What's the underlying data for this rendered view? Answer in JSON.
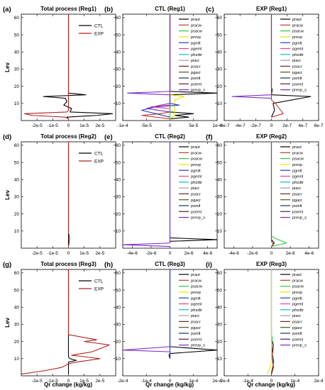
{
  "figure": {
    "ylabel": "Lev",
    "xlabel": "Qr change (kg/kg)"
  },
  "process_legend": [
    {
      "name": "praut",
      "color": "#000000"
    },
    {
      "name": "pracw",
      "color": "#c0392b"
    },
    {
      "name": "psacw",
      "color": "#2ecc40"
    },
    {
      "name": "prevp",
      "color": "#e6e600"
    },
    {
      "name": "pgmlt",
      "color": "#1f3fbf"
    },
    {
      "name": "pgeml",
      "color": "#e83e8c"
    },
    {
      "name": "pfrzdtr",
      "color": "#00bcd4"
    },
    {
      "name": "piacr",
      "color": "#9e9e9e"
    },
    {
      "name": "psacr",
      "color": "#6d2a1e"
    },
    {
      "name": "pgacr",
      "color": "#4a5a1a"
    },
    {
      "name": "psmlt",
      "color": "#0a3a5a"
    },
    {
      "name": "pseml",
      "color": "#5a1a3a"
    },
    {
      "name": "prevp_s",
      "color": "#7a2ac9"
    }
  ],
  "total_legend": [
    {
      "name": "CTL",
      "color": "#000000"
    },
    {
      "name": "EXP",
      "color": "#b22222"
    }
  ],
  "chart_data": [
    {
      "id": "a",
      "label": "(a)",
      "title": "Total process (Reg1)",
      "type": "line",
      "xlim": [
        -3e-05,
        3e-05
      ],
      "ylim": [
        0,
        62
      ],
      "xticks": [
        "-2e-5",
        "-1e-5",
        "0",
        "1e-5",
        "2e-5"
      ],
      "xtick_values": [
        -2e-05,
        -1e-05,
        0,
        1e-05,
        2e-05
      ],
      "yticks": [
        10,
        20,
        30,
        40,
        50,
        60
      ],
      "legend": "total",
      "series": [
        {
          "name": "CTL",
          "color": "#000000",
          "points": [
            [
              0,
              1
            ],
            [
              -1e-06,
              2
            ],
            [
              1.8e-05,
              3
            ],
            [
              2.8e-05,
              4
            ],
            [
              1e-06,
              5
            ],
            [
              2e-06,
              7
            ],
            [
              -3e-06,
              9
            ],
            [
              -1e-06,
              11
            ],
            [
              -2e-06,
              13
            ],
            [
              -1.6e-05,
              14
            ],
            [
              1.1e-05,
              15
            ],
            [
              0,
              16
            ],
            [
              0,
              62
            ]
          ]
        },
        {
          "name": "EXP",
          "color": "#b22222",
          "points": [
            [
              0,
              1
            ],
            [
              -2e-06,
              2
            ],
            [
              -2.3e-05,
              3
            ],
            [
              -2.8e-05,
              4
            ],
            [
              -1e-06,
              5
            ],
            [
              0,
              6
            ],
            [
              0,
              62
            ]
          ]
        }
      ]
    },
    {
      "id": "b",
      "label": "(b)",
      "title": "CTL (Reg1)",
      "type": "line",
      "xlim": [
        -0.0001,
        0.0001
      ],
      "ylim": [
        0,
        62
      ],
      "xticks": [
        "-1e-4",
        "-5e-5",
        "0",
        "5e-5",
        "1e-4"
      ],
      "xtick_values": [
        -0.0001,
        -5e-05,
        0,
        5e-05,
        0.0001
      ],
      "yticks": [
        10,
        20,
        30,
        40,
        50,
        60
      ],
      "legend": "process",
      "series": [
        {
          "name": "praut",
          "color": "#000000",
          "points": [
            [
              0,
              1
            ],
            [
              4e-05,
              2
            ],
            [
              1e-05,
              3
            ],
            [
              5e-05,
              4
            ],
            [
              0,
              5
            ],
            [
              0,
              15
            ],
            [
              0.0001,
              16
            ],
            [
              0,
              17
            ],
            [
              0,
              62
            ]
          ]
        },
        {
          "name": "pracw",
          "color": "#c0392b",
          "points": [
            [
              0,
              1
            ],
            [
              -3e-05,
              2
            ],
            [
              -6e-05,
              3
            ],
            [
              -2e-05,
              4
            ],
            [
              0,
              5
            ],
            [
              0,
              62
            ]
          ]
        },
        {
          "name": "psacw",
          "color": "#2ecc40",
          "points": [
            [
              0,
              1
            ],
            [
              0,
              62
            ]
          ]
        },
        {
          "name": "prevp",
          "color": "#e6e600",
          "points": [
            [
              0,
              1
            ],
            [
              1e-05,
              3
            ],
            [
              1e-05,
              12
            ],
            [
              3e-05,
              14
            ],
            [
              0,
              15
            ],
            [
              0,
              62
            ]
          ]
        },
        {
          "name": "pgmlt",
          "color": "#1f3fbf",
          "points": [
            [
              0,
              2
            ],
            [
              -3e-05,
              4
            ],
            [
              -6e-05,
              6
            ],
            [
              -3e-05,
              8
            ],
            [
              2e-05,
              9
            ],
            [
              0,
              10
            ],
            [
              0,
              62
            ]
          ]
        },
        {
          "name": "pgeml",
          "color": "#e83e8c",
          "points": [
            [
              0,
              7
            ],
            [
              -4e-05,
              8
            ],
            [
              0,
              9
            ],
            [
              0,
              62
            ]
          ]
        },
        {
          "name": "prevp_s",
          "color": "#7a2ac9",
          "points": [
            [
              0,
              5
            ],
            [
              -5e-05,
              7
            ],
            [
              -2e-05,
              9
            ],
            [
              0,
              10
            ],
            [
              0,
              15
            ],
            [
              -9e-05,
              16
            ],
            [
              0,
              17
            ],
            [
              0,
              62
            ]
          ]
        }
      ]
    },
    {
      "id": "c",
      "label": "(c)",
      "title": "EXP (Reg1)",
      "type": "line",
      "xlim": [
        -6e-07,
        6e-07
      ],
      "ylim": [
        0,
        62
      ],
      "xticks": [
        "-6e-7",
        "-4e-7",
        "-2e-7",
        "0",
        "2e-7",
        "4e-7",
        "6e-7"
      ],
      "xtick_values": [
        -6e-07,
        -4e-07,
        -2e-07,
        0,
        2e-07,
        4e-07,
        6e-07
      ],
      "yticks": [
        10,
        20,
        30,
        40,
        50,
        60
      ],
      "legend": "process",
      "series": [
        {
          "name": "praut",
          "color": "#000000",
          "points": [
            [
              0,
              2
            ],
            [
              4e-08,
              6
            ],
            [
              2e-08,
              10
            ],
            [
              5e-07,
              14
            ],
            [
              0,
              15
            ],
            [
              1e-08,
              18
            ],
            [
              0,
              19
            ],
            [
              0,
              62
            ]
          ]
        },
        {
          "name": "pracw",
          "color": "#c0392b",
          "points": [
            [
              0,
              2
            ],
            [
              1.5e-07,
              4
            ],
            [
              1e-07,
              7
            ],
            [
              5e-08,
              10
            ],
            [
              0,
              12
            ],
            [
              0,
              62
            ]
          ]
        },
        {
          "name": "prevp_s",
          "color": "#7a2ac9",
          "points": [
            [
              0,
              13
            ],
            [
              -5e-07,
              14
            ],
            [
              0,
              15
            ],
            [
              0,
              62
            ]
          ]
        }
      ]
    },
    {
      "id": "d",
      "label": "(d)",
      "title": "Total process (Reg2)",
      "type": "line",
      "xlim": [
        -3e-05,
        3e-05
      ],
      "ylim": [
        0,
        62
      ],
      "xticks": [
        "-2e-5",
        "-1e-5",
        "0",
        "1e-5",
        "2e-5"
      ],
      "xtick_values": [
        -2e-05,
        -1e-05,
        0,
        1e-05,
        2e-05
      ],
      "yticks": [
        10,
        20,
        30,
        40,
        50,
        60
      ],
      "legend": "total",
      "series": [
        {
          "name": "CTL",
          "color": "#000000",
          "points": [
            [
              0,
              1
            ],
            [
              0,
              62
            ]
          ]
        },
        {
          "name": "EXP",
          "color": "#b22222",
          "points": [
            [
              0,
              1
            ],
            [
              4e-07,
              3
            ],
            [
              8e-07,
              6
            ],
            [
              3e-07,
              8
            ],
            [
              0,
              9
            ],
            [
              0,
              62
            ]
          ]
        }
      ]
    },
    {
      "id": "e",
      "label": "(e)",
      "title": "CTL (Reg2)",
      "type": "line",
      "xlim": [
        -5e-06,
        5e-06
      ],
      "ylim": [
        0,
        62
      ],
      "xticks": [
        "-4e-6",
        "-2e-6",
        "0",
        "2e-6",
        "4e-6"
      ],
      "xtick_values": [
        -4e-06,
        -2e-06,
        0,
        2e-06,
        4e-06
      ],
      "yticks": [
        10,
        20,
        30,
        40,
        50,
        60
      ],
      "legend": "process",
      "series": [
        {
          "name": "praut",
          "color": "#000000",
          "points": [
            [
              0,
              4
            ],
            [
              5e-06,
              5
            ],
            [
              0,
              6
            ],
            [
              0,
              62
            ]
          ]
        },
        {
          "name": "prevp_s",
          "color": "#7a2ac9",
          "points": [
            [
              0,
              1
            ],
            [
              -5e-06,
              2
            ],
            [
              0,
              3
            ],
            [
              0,
              62
            ]
          ]
        }
      ]
    },
    {
      "id": "f",
      "label": "(f)",
      "title": "EXP (Reg2)",
      "type": "line",
      "xlim": [
        -5e-06,
        5e-06
      ],
      "ylim": [
        0,
        62
      ],
      "xticks": [
        "-4e-6",
        "-2e-6",
        "0",
        "2e-6",
        "4e-6"
      ],
      "xtick_values": [
        -4e-06,
        -2e-06,
        0,
        2e-06,
        4e-06
      ],
      "yticks": [
        10,
        20,
        30,
        40,
        50,
        60
      ],
      "legend": "process",
      "series": [
        {
          "name": "psacw",
          "color": "#2ecc40",
          "points": [
            [
              0,
              1
            ],
            [
              1.6e-06,
              3
            ],
            [
              7e-07,
              5
            ],
            [
              0,
              7
            ],
            [
              0,
              62
            ]
          ]
        },
        {
          "name": "praut",
          "color": "#000000",
          "points": [
            [
              0,
              1
            ],
            [
              3e-07,
              3
            ],
            [
              0,
              5
            ],
            [
              0,
              62
            ]
          ]
        },
        {
          "name": "pracw",
          "color": "#c0392b",
          "points": [
            [
              0,
              1
            ],
            [
              2e-07,
              2
            ],
            [
              0,
              4
            ],
            [
              0,
              62
            ]
          ]
        }
      ]
    },
    {
      "id": "g",
      "label": "(g)",
      "title": "Total process (Reg3)",
      "type": "line",
      "xlim": [
        -3e-05,
        3e-05
      ],
      "ylim": [
        0,
        62
      ],
      "xticks": [
        "-2e-5",
        "-1e-5",
        "0",
        "1e-5",
        "2e-5"
      ],
      "xtick_values": [
        -2e-05,
        -1e-05,
        0,
        1e-05,
        2e-05
      ],
      "yticks": [
        10,
        20,
        30,
        40,
        50,
        60
      ],
      "legend": "total",
      "series": [
        {
          "name": "CTL",
          "color": "#000000",
          "points": [
            [
              0,
              1
            ],
            [
              0,
              8
            ],
            [
              5e-06,
              9
            ],
            [
              1e-06,
              10
            ],
            [
              0,
              11
            ],
            [
              0,
              62
            ]
          ]
        },
        {
          "name": "EXP",
          "color": "#b22222",
          "points": [
            [
              -3e-05,
              1
            ],
            [
              -1.5e-05,
              3
            ],
            [
              -4e-06,
              5
            ],
            [
              0,
              7
            ],
            [
              5e-06,
              8
            ],
            [
              2e-05,
              10
            ],
            [
              2e-06,
              12
            ],
            [
              1.5e-05,
              14
            ],
            [
              2.6e-05,
              18
            ],
            [
              1e-05,
              20
            ],
            [
              1.8e-05,
              21
            ],
            [
              0,
              24
            ],
            [
              0,
              62
            ]
          ]
        }
      ]
    },
    {
      "id": "h",
      "label": "(h)",
      "title": "CTL (Reg3)",
      "type": "line",
      "xlim": [
        -0.0002,
        0.0002
      ],
      "ylim": [
        0,
        62
      ],
      "xticks": [
        "-2e-4",
        "-1e-4",
        "0",
        "1e-4",
        "2e-4"
      ],
      "xtick_values": [
        -0.0002,
        -0.0001,
        0,
        0.0001,
        0.0002
      ],
      "yticks": [
        10,
        20,
        30,
        40,
        50,
        60
      ],
      "legend": "process",
      "series": [
        {
          "name": "praut",
          "color": "#000000",
          "points": [
            [
              0,
              10
            ],
            [
              0,
              13
            ],
            [
              0.0002,
              15
            ],
            [
              0,
              17
            ],
            [
              0,
              62
            ]
          ]
        },
        {
          "name": "prevp_s",
          "color": "#7a2ac9",
          "points": [
            [
              0,
              14
            ],
            [
              -0.0002,
              15
            ],
            [
              0,
              17
            ],
            [
              0,
              62
            ]
          ]
        },
        {
          "name": "pgmlt",
          "color": "#1f3fbf",
          "points": [
            [
              0,
              10
            ],
            [
              -5e-06,
              12
            ],
            [
              0,
              13
            ],
            [
              0,
              62
            ]
          ]
        }
      ]
    },
    {
      "id": "i",
      "label": "(i)",
      "title": "EXP (Reg3)",
      "type": "line",
      "xlim": [
        -0.0002,
        0.0002
      ],
      "ylim": [
        0,
        62
      ],
      "xticks": [
        "-2e-4",
        "-1e-4",
        "0",
        "1e-4",
        "2e-4"
      ],
      "xtick_values": [
        -0.0002,
        -0.0001,
        0,
        0.0001,
        0.0002
      ],
      "yticks": [
        10,
        20,
        30,
        40,
        50,
        60
      ],
      "legend": "process",
      "series": [
        {
          "name": "praut",
          "color": "#000000",
          "points": [
            [
              0,
              1
            ],
            [
              8e-06,
              5
            ],
            [
              4e-06,
              12
            ],
            [
              8e-06,
              18
            ],
            [
              0,
              22
            ],
            [
              0,
              62
            ]
          ]
        },
        {
          "name": "pracw",
          "color": "#c0392b",
          "points": [
            [
              0,
              2
            ],
            [
              1e-05,
              8
            ],
            [
              3e-06,
              14
            ],
            [
              0,
              20
            ],
            [
              0,
              62
            ]
          ]
        },
        {
          "name": "psacw",
          "color": "#2ecc40",
          "points": [
            [
              0,
              18
            ],
            [
              4e-06,
              22
            ],
            [
              0,
              24
            ],
            [
              0,
              62
            ]
          ]
        },
        {
          "name": "prevp",
          "color": "#e6e600",
          "points": [
            [
              -1.8e-05,
              1
            ],
            [
              -8e-06,
              4
            ],
            [
              -2e-06,
              7
            ],
            [
              0,
              9
            ],
            [
              0,
              62
            ]
          ]
        }
      ]
    }
  ]
}
